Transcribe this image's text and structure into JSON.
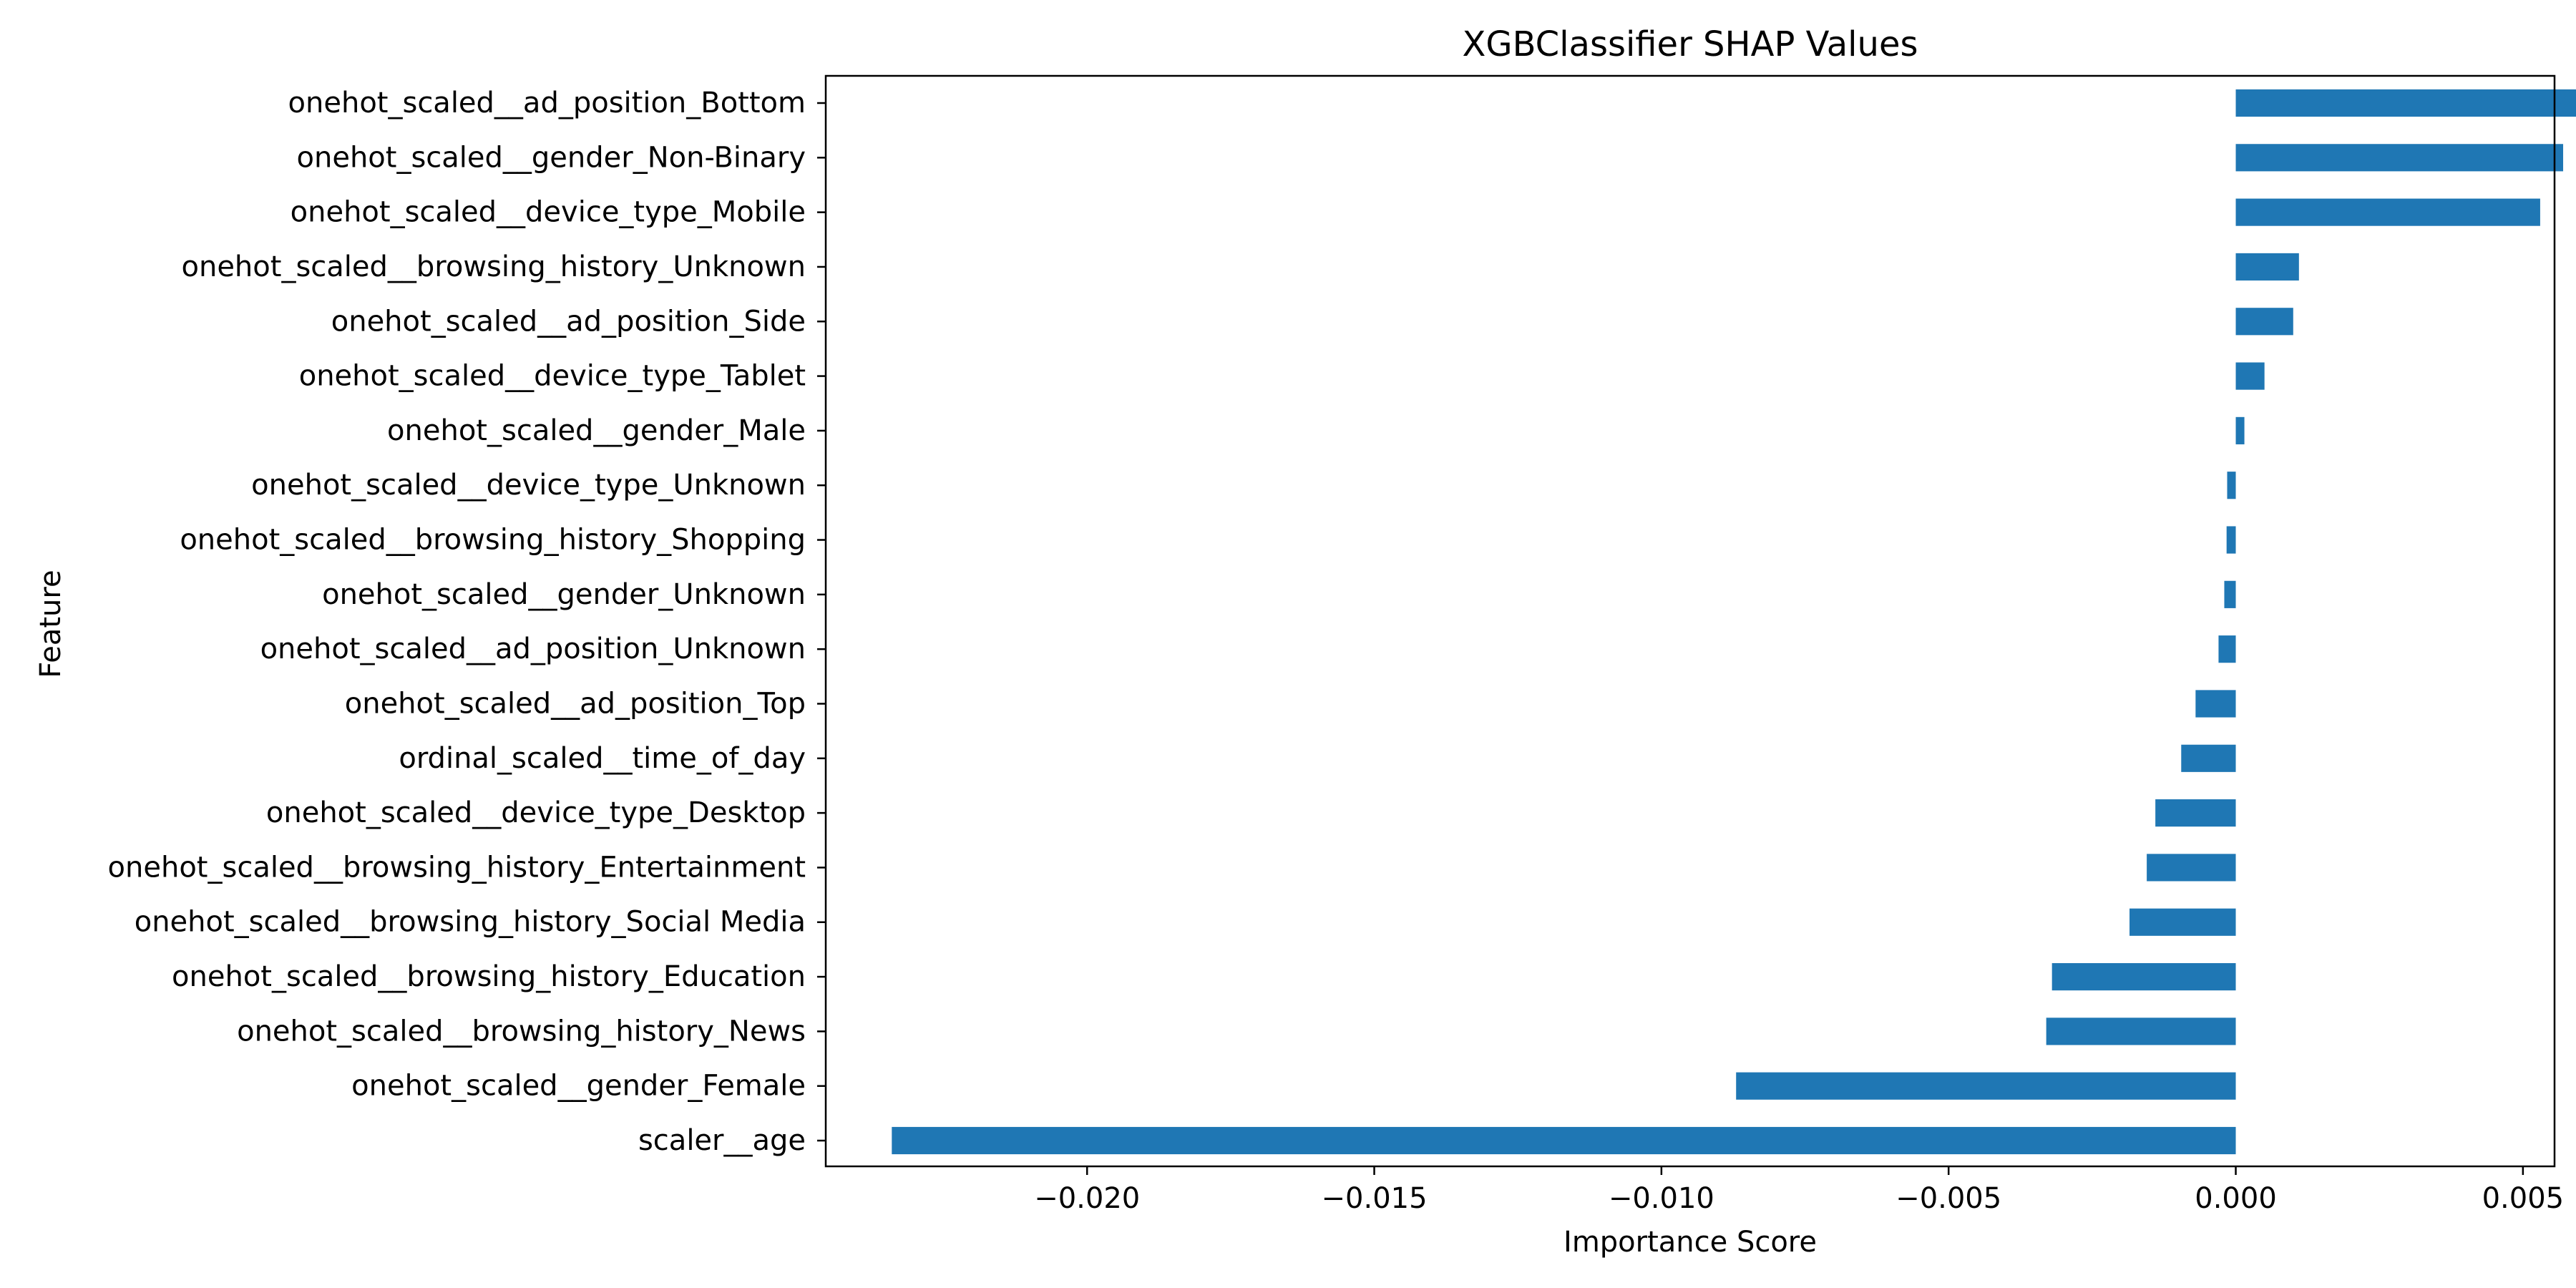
{
  "chart_data": {
    "type": "bar",
    "orientation": "horizontal",
    "title": "XGBClassifier SHAP Values",
    "xlabel": "Importance Score",
    "ylabel": "Feature",
    "xlim": [
      -0.02455,
      0.00555
    ],
    "xticks": [
      -0.02,
      -0.015,
      -0.01,
      -0.005,
      0.0,
      0.005
    ],
    "xtick_labels": [
      "−0.020",
      "−0.015",
      "−0.010",
      "−0.005",
      "0.000",
      "0.005"
    ],
    "bar_color": "#1f77b4",
    "grid": false,
    "categories": [
      "onehot_scaled__ad_position_Bottom",
      "onehot_scaled__gender_Non-Binary",
      "onehot_scaled__device_type_Mobile",
      "onehot_scaled__browsing_history_Unknown",
      "onehot_scaled__ad_position_Side",
      "onehot_scaled__device_type_Tablet",
      "onehot_scaled__gender_Male",
      "onehot_scaled__device_type_Unknown",
      "onehot_scaled__browsing_history_Shopping",
      "onehot_scaled__gender_Unknown",
      "onehot_scaled__ad_position_Unknown",
      "onehot_scaled__ad_position_Top",
      "ordinal_scaled__time_of_day",
      "onehot_scaled__device_type_Desktop",
      "onehot_scaled__browsing_history_Entertainment",
      "onehot_scaled__browsing_history_Social Media",
      "onehot_scaled__browsing_history_Education",
      "onehot_scaled__browsing_history_News",
      "onehot_scaled__gender_Female",
      "scaler__age"
    ],
    "values": [
      0.006,
      0.0057,
      0.0053,
      0.0011,
      0.001,
      0.0005,
      0.00015,
      -0.00015,
      -0.00016,
      -0.0002,
      -0.0003,
      -0.0007,
      -0.00095,
      -0.0014,
      -0.00155,
      -0.00185,
      -0.0032,
      -0.0033,
      -0.0087,
      -0.0234
    ]
  }
}
